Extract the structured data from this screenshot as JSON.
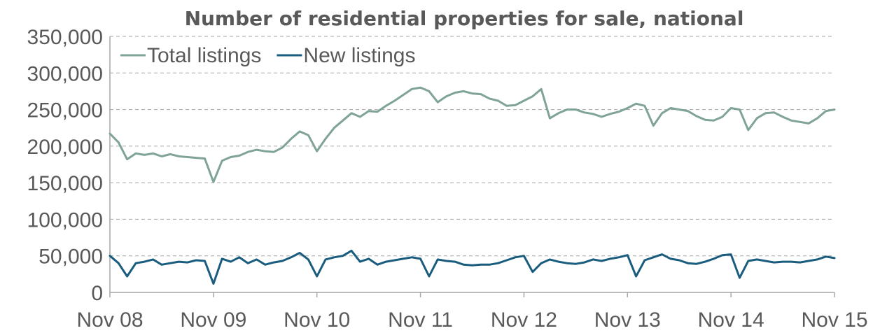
{
  "chart_data": {
    "type": "line",
    "title": "Number of residential properties for sale, national",
    "xlabel": "",
    "ylabel": "",
    "ylim": [
      0,
      350000
    ],
    "y_ticks": [
      0,
      50000,
      100000,
      150000,
      200000,
      250000,
      300000,
      350000
    ],
    "y_tick_labels": [
      "0",
      "50,000",
      "100,000",
      "150,000",
      "200,000",
      "250,000",
      "300,000",
      "350,000"
    ],
    "x_range": [
      "2008-11",
      "2015-11"
    ],
    "x_ticks": [
      "2008-11",
      "2009-11",
      "2010-11",
      "2011-11",
      "2012-11",
      "2013-11",
      "2014-11",
      "2015-11"
    ],
    "x_tick_labels": [
      "Nov 08",
      "Nov 09",
      "Nov 10",
      "Nov 11",
      "Nov 12",
      "Nov 13",
      "Nov 14",
      "Nov 15"
    ],
    "grid": true,
    "legend_position": "top-left",
    "series": [
      {
        "name": "Total listings",
        "color": "#7fa395",
        "points": [
          [
            "2008-11",
            217000
          ],
          [
            "2008-12",
            205000
          ],
          [
            "2009-01",
            182000
          ],
          [
            "2009-02",
            190000
          ],
          [
            "2009-03",
            188000
          ],
          [
            "2009-04",
            190000
          ],
          [
            "2009-05",
            186000
          ],
          [
            "2009-06",
            189000
          ],
          [
            "2009-07",
            186000
          ],
          [
            "2009-08",
            185000
          ],
          [
            "2009-09",
            184000
          ],
          [
            "2009-10",
            183000
          ],
          [
            "2009-11",
            151000
          ],
          [
            "2009-12",
            180000
          ],
          [
            "2010-01",
            185000
          ],
          [
            "2010-02",
            187000
          ],
          [
            "2010-03",
            192000
          ],
          [
            "2010-04",
            195000
          ],
          [
            "2010-05",
            193000
          ],
          [
            "2010-06",
            192000
          ],
          [
            "2010-07",
            198000
          ],
          [
            "2010-08",
            210000
          ],
          [
            "2010-09",
            220000
          ],
          [
            "2010-10",
            215000
          ],
          [
            "2010-11",
            193000
          ],
          [
            "2010-12",
            210000
          ],
          [
            "2011-01",
            225000
          ],
          [
            "2011-02",
            235000
          ],
          [
            "2011-03",
            245000
          ],
          [
            "2011-04",
            240000
          ],
          [
            "2011-05",
            248000
          ],
          [
            "2011-06",
            247000
          ],
          [
            "2011-07",
            255000
          ],
          [
            "2011-08",
            262000
          ],
          [
            "2011-09",
            270000
          ],
          [
            "2011-10",
            278000
          ],
          [
            "2011-11",
            280000
          ],
          [
            "2011-12",
            275000
          ],
          [
            "2012-01",
            260000
          ],
          [
            "2012-02",
            268000
          ],
          [
            "2012-03",
            273000
          ],
          [
            "2012-04",
            275000
          ],
          [
            "2012-05",
            272000
          ],
          [
            "2012-06",
            271000
          ],
          [
            "2012-07",
            265000
          ],
          [
            "2012-08",
            262000
          ],
          [
            "2012-09",
            255000
          ],
          [
            "2012-10",
            256000
          ],
          [
            "2012-11",
            262000
          ],
          [
            "2012-12",
            268000
          ],
          [
            "2013-01",
            278000
          ],
          [
            "2013-02",
            238000
          ],
          [
            "2013-03",
            245000
          ],
          [
            "2013-04",
            250000
          ],
          [
            "2013-05",
            250000
          ],
          [
            "2013-06",
            246000
          ],
          [
            "2013-07",
            244000
          ],
          [
            "2013-08",
            240000
          ],
          [
            "2013-09",
            244000
          ],
          [
            "2013-10",
            247000
          ],
          [
            "2013-11",
            252000
          ],
          [
            "2013-12",
            258000
          ],
          [
            "2014-01",
            255000
          ],
          [
            "2014-02",
            228000
          ],
          [
            "2014-03",
            245000
          ],
          [
            "2014-04",
            252000
          ],
          [
            "2014-05",
            250000
          ],
          [
            "2014-06",
            248000
          ],
          [
            "2014-07",
            241000
          ],
          [
            "2014-08",
            236000
          ],
          [
            "2014-09",
            235000
          ],
          [
            "2014-10",
            240000
          ],
          [
            "2014-11",
            252000
          ],
          [
            "2014-12",
            250000
          ],
          [
            "2015-01",
            222000
          ],
          [
            "2015-02",
            238000
          ],
          [
            "2015-03",
            245000
          ],
          [
            "2015-04",
            246000
          ],
          [
            "2015-05",
            240000
          ],
          [
            "2015-06",
            235000
          ],
          [
            "2015-07",
            233000
          ],
          [
            "2015-08",
            231000
          ],
          [
            "2015-09",
            238000
          ],
          [
            "2015-10",
            248000
          ],
          [
            "2015-11",
            250000
          ]
        ]
      },
      {
        "name": "New listings",
        "color": "#1a5c7e",
        "points": [
          [
            "2008-11",
            50000
          ],
          [
            "2008-12",
            40000
          ],
          [
            "2009-01",
            22000
          ],
          [
            "2009-02",
            40000
          ],
          [
            "2009-03",
            42000
          ],
          [
            "2009-04",
            45000
          ],
          [
            "2009-05",
            38000
          ],
          [
            "2009-06",
            40000
          ],
          [
            "2009-07",
            42000
          ],
          [
            "2009-08",
            41000
          ],
          [
            "2009-09",
            44000
          ],
          [
            "2009-10",
            43000
          ],
          [
            "2009-11",
            12000
          ],
          [
            "2009-12",
            46000
          ],
          [
            "2010-01",
            42000
          ],
          [
            "2010-02",
            48000
          ],
          [
            "2010-03",
            40000
          ],
          [
            "2010-04",
            45000
          ],
          [
            "2010-05",
            38000
          ],
          [
            "2010-06",
            41000
          ],
          [
            "2010-07",
            43000
          ],
          [
            "2010-08",
            48000
          ],
          [
            "2010-09",
            54000
          ],
          [
            "2010-10",
            45000
          ],
          [
            "2010-11",
            22000
          ],
          [
            "2010-12",
            45000
          ],
          [
            "2011-01",
            48000
          ],
          [
            "2011-02",
            50000
          ],
          [
            "2011-03",
            57000
          ],
          [
            "2011-04",
            42000
          ],
          [
            "2011-05",
            46000
          ],
          [
            "2011-06",
            38000
          ],
          [
            "2011-07",
            42000
          ],
          [
            "2011-08",
            44000
          ],
          [
            "2011-09",
            46000
          ],
          [
            "2011-10",
            48000
          ],
          [
            "2011-11",
            46000
          ],
          [
            "2011-12",
            22000
          ],
          [
            "2012-01",
            45000
          ],
          [
            "2012-02",
            43000
          ],
          [
            "2012-03",
            42000
          ],
          [
            "2012-04",
            38000
          ],
          [
            "2012-05",
            37000
          ],
          [
            "2012-06",
            38000
          ],
          [
            "2012-07",
            38000
          ],
          [
            "2012-08",
            40000
          ],
          [
            "2012-09",
            44000
          ],
          [
            "2012-10",
            48000
          ],
          [
            "2012-11",
            50000
          ],
          [
            "2012-12",
            28000
          ],
          [
            "2013-01",
            40000
          ],
          [
            "2013-02",
            45000
          ],
          [
            "2013-03",
            42000
          ],
          [
            "2013-04",
            40000
          ],
          [
            "2013-05",
            39000
          ],
          [
            "2013-06",
            41000
          ],
          [
            "2013-07",
            45000
          ],
          [
            "2013-08",
            43000
          ],
          [
            "2013-09",
            46000
          ],
          [
            "2013-10",
            48000
          ],
          [
            "2013-11",
            51000
          ],
          [
            "2013-12",
            22000
          ],
          [
            "2014-01",
            44000
          ],
          [
            "2014-02",
            48000
          ],
          [
            "2014-03",
            52000
          ],
          [
            "2014-04",
            46000
          ],
          [
            "2014-05",
            44000
          ],
          [
            "2014-06",
            40000
          ],
          [
            "2014-07",
            39000
          ],
          [
            "2014-08",
            42000
          ],
          [
            "2014-09",
            46000
          ],
          [
            "2014-10",
            51000
          ],
          [
            "2014-11",
            52000
          ],
          [
            "2014-12",
            20000
          ],
          [
            "2015-01",
            43000
          ],
          [
            "2015-02",
            45000
          ],
          [
            "2015-03",
            43000
          ],
          [
            "2015-04",
            41000
          ],
          [
            "2015-05",
            42000
          ],
          [
            "2015-06",
            42000
          ],
          [
            "2015-07",
            41000
          ],
          [
            "2015-08",
            43000
          ],
          [
            "2015-09",
            45000
          ],
          [
            "2015-10",
            49000
          ],
          [
            "2015-11",
            47000
          ]
        ]
      }
    ]
  }
}
